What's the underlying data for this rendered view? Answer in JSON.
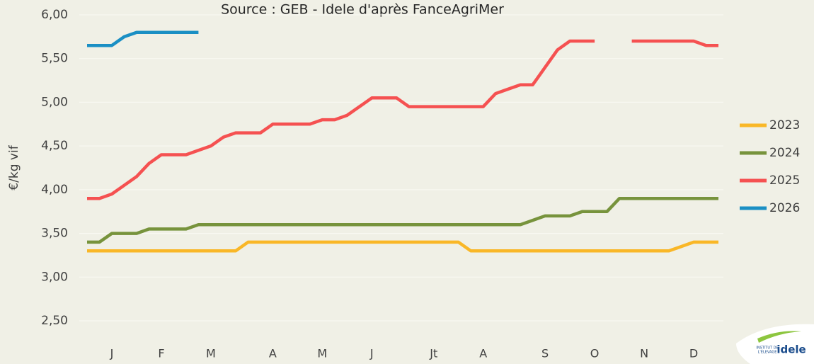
{
  "chart_data": {
    "type": "line",
    "title": "Source : GEB - Idele d'après FanceAgriMer",
    "y_label": "€/kg vif",
    "categories": [
      null,
      null,
      "J",
      null,
      null,
      null,
      "F",
      null,
      null,
      null,
      "M",
      null,
      null,
      null,
      null,
      "A",
      null,
      null,
      null,
      "M",
      null,
      null,
      null,
      "J",
      null,
      null,
      null,
      null,
      "Jt",
      null,
      null,
      null,
      "A",
      null,
      null,
      null,
      null,
      "S",
      null,
      null,
      null,
      "O",
      null,
      null,
      null,
      "N",
      null,
      null,
      null,
      "D",
      null,
      null
    ],
    "ylim": [
      2.5,
      6.0
    ],
    "yticks": [
      {
        "value": 2.5,
        "label": "2,50"
      },
      {
        "value": 3.0,
        "label": "3,00"
      },
      {
        "value": 3.5,
        "label": "3,50"
      },
      {
        "value": 4.0,
        "label": "4,00"
      },
      {
        "value": 4.5,
        "label": "4,50"
      },
      {
        "value": 5.0,
        "label": "5,00"
      },
      {
        "value": 5.5,
        "label": "5,50"
      },
      {
        "value": 6.0,
        "label": "6,00"
      }
    ],
    "grid": true,
    "legend": "right",
    "series": [
      {
        "name": "2023",
        "color": "#f9b727",
        "values": [
          3.3,
          3.3,
          3.3,
          3.3,
          3.3,
          3.3,
          3.3,
          3.3,
          3.3,
          3.3,
          3.3,
          3.3,
          3.3,
          3.4,
          3.4,
          3.4,
          3.4,
          3.4,
          3.4,
          3.4,
          3.4,
          3.4,
          3.4,
          3.4,
          3.4,
          3.4,
          3.4,
          3.4,
          3.4,
          3.4,
          3.4,
          3.3,
          3.3,
          3.3,
          3.3,
          3.3,
          3.3,
          3.3,
          3.3,
          3.3,
          3.3,
          3.3,
          3.3,
          3.3,
          3.3,
          3.3,
          3.3,
          3.3,
          3.35,
          3.4,
          3.4,
          3.4
        ]
      },
      {
        "name": "2024",
        "color": "#77933c",
        "values": [
          3.4,
          3.4,
          3.5,
          3.5,
          3.5,
          3.55,
          3.55,
          3.55,
          3.55,
          3.6,
          3.6,
          3.6,
          3.6,
          3.6,
          3.6,
          3.6,
          3.6,
          3.6,
          3.6,
          3.6,
          3.6,
          3.6,
          3.6,
          3.6,
          3.6,
          3.6,
          3.6,
          3.6,
          3.6,
          3.6,
          3.6,
          3.6,
          3.6,
          3.6,
          3.6,
          3.6,
          3.65,
          3.7,
          3.7,
          3.7,
          3.75,
          3.75,
          3.75,
          3.9,
          3.9,
          3.9,
          3.9,
          3.9,
          3.9,
          3.9,
          3.9,
          3.9
        ]
      },
      {
        "name": "2025",
        "color": "#f55151",
        "values": [
          3.9,
          3.9,
          3.95,
          4.05,
          4.15,
          4.3,
          4.4,
          4.4,
          4.4,
          4.45,
          4.5,
          4.6,
          4.65,
          4.65,
          4.65,
          4.75,
          4.75,
          4.75,
          4.75,
          4.8,
          4.8,
          4.85,
          4.95,
          5.05,
          5.05,
          5.05,
          4.95,
          4.95,
          4.95,
          4.95,
          4.95,
          4.95,
          4.95,
          5.1,
          5.15,
          5.2,
          5.2,
          5.4,
          5.6,
          5.7,
          5.7,
          5.7,
          null,
          null,
          5.7,
          5.7,
          5.7,
          5.7,
          5.7,
          5.7,
          5.65,
          5.65
        ]
      },
      {
        "name": "2026",
        "color": "#1a8fc4",
        "values": [
          5.65,
          5.65,
          5.65,
          5.75,
          5.8,
          5.8,
          5.8,
          5.8,
          5.8,
          5.8,
          null,
          null,
          null,
          null,
          null,
          null,
          null,
          null,
          null,
          null,
          null,
          null,
          null,
          null,
          null,
          null,
          null,
          null,
          null,
          null,
          null,
          null,
          null,
          null,
          null,
          null,
          null,
          null,
          null,
          null,
          null,
          null,
          null,
          null,
          null,
          null,
          null,
          null,
          null,
          null,
          null,
          null
        ]
      }
    ],
    "logo": {
      "line1": "INSTITUT DE",
      "line2": "L'ÉLEVAGE",
      "brand": "idele"
    }
  }
}
